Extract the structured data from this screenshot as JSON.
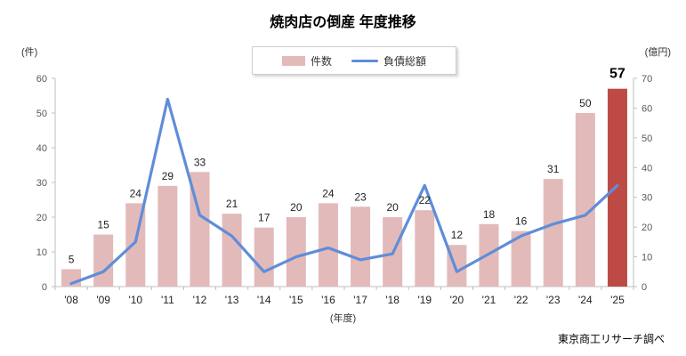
{
  "title": "焼肉店の倒産 年度推移",
  "left_axis_unit": "(件)",
  "right_axis_unit": "(億円)",
  "xlabel": "(年度)",
  "source": "東京商工リサーチ調べ",
  "legend": {
    "bars": "件数",
    "line": "負債総額"
  },
  "colors": {
    "bar": "#e2baba",
    "bar_highlight": "#bd4a45",
    "line": "#5f8dd9",
    "axis": "#bfbfbf",
    "tick_label": "#595959",
    "data_label": "#222222",
    "highlight_label": "#000000"
  },
  "chart_data": {
    "type": "bar",
    "subtype": "combo bar+line, dual axis",
    "title": "焼肉店の倒産 年度推移",
    "categories": [
      "'08",
      "'09",
      "'10",
      "'11",
      "'12",
      "'13",
      "'14",
      "'15",
      "'16",
      "'17",
      "'18",
      "'19",
      "'20",
      "'21",
      "'22",
      "'23",
      "'24",
      "'25"
    ],
    "series": [
      {
        "name": "件数",
        "type": "bar",
        "axis": "left",
        "values": [
          5,
          15,
          24,
          29,
          33,
          21,
          17,
          20,
          24,
          23,
          20,
          22,
          12,
          18,
          16,
          31,
          50,
          57
        ],
        "labeled": true
      },
      {
        "name": "負債総額",
        "type": "line",
        "axis": "right",
        "values": [
          1,
          5,
          15,
          63,
          24,
          17,
          5,
          10,
          13,
          9,
          11,
          34,
          5,
          11,
          17,
          21,
          24,
          34
        ],
        "labeled": false,
        "note": "values estimated from line position against right axis"
      }
    ],
    "left_axis": {
      "unit": "(件)",
      "min": 0,
      "max": 60,
      "step": 10
    },
    "right_axis": {
      "unit": "(億円)",
      "min": 0,
      "max": 70,
      "step": 10
    },
    "xlabel": "(年度)",
    "grid": false,
    "legend_position": "top-center",
    "highlight_last_bar": true,
    "annotations": [
      {
        "text": "57",
        "target": "'25 bar",
        "style": "bold, enlarged"
      }
    ]
  }
}
